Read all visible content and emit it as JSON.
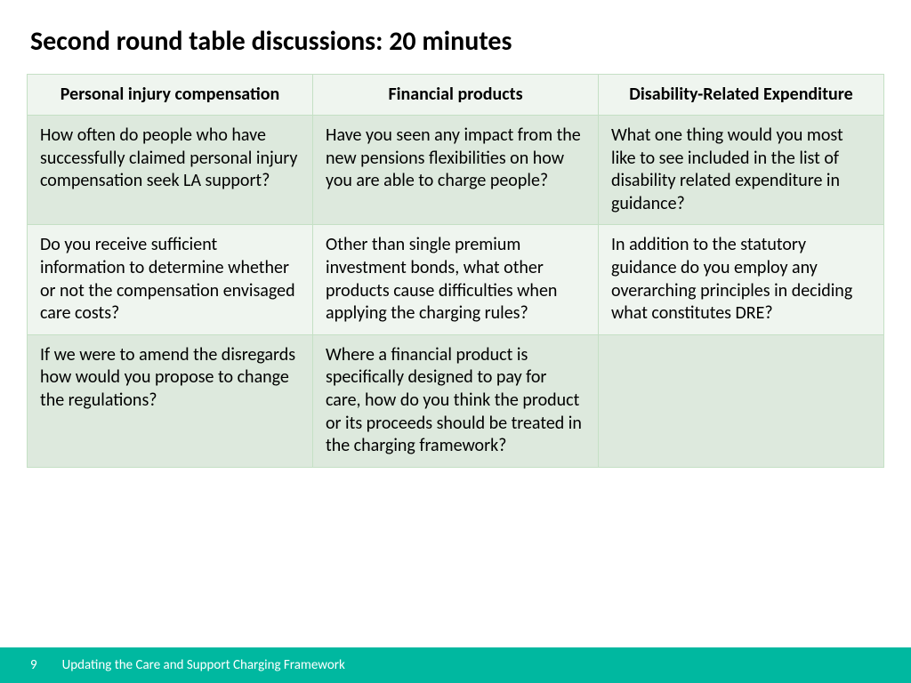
{
  "title": "Second round table discussions: 20 minutes",
  "table": {
    "columns": [
      "Personal injury compensation",
      "Financial products",
      "Disability-Related Expenditure"
    ],
    "rows": [
      [
        "How often do people who have successfully claimed personal injury compensation seek LA support?",
        "Have you seen any impact from the new pensions flexibilities on how you are able to charge people?",
        "What one thing would you most like to see included in the list of disability related expenditure in guidance?"
      ],
      [
        "Do you receive sufficient information to determine whether or not the compensation envisaged care costs?",
        "Other than single premium investment bonds, what other products cause difficulties when applying the charging rules?",
        "In addition to the statutory guidance do you employ any overarching principles in deciding what constitutes DRE?"
      ],
      [
        "If we were to amend the disregards how would you propose to change the regulations?",
        "Where a financial product is specifically designed to pay for care, how do you think the product or its proceeds should be treated in the charging framework?",
        ""
      ]
    ],
    "header_bg": "#eff5ef",
    "row_odd_bg": "#dde9dd",
    "row_even_bg": "#eff5ef",
    "border_color": "#c5e0c5",
    "font_size": 20
  },
  "footer": {
    "page_number": "9",
    "text": "Updating the Care and Support Charging Framework",
    "bg_color": "#00b8a0",
    "text_color": "#ffffff"
  }
}
